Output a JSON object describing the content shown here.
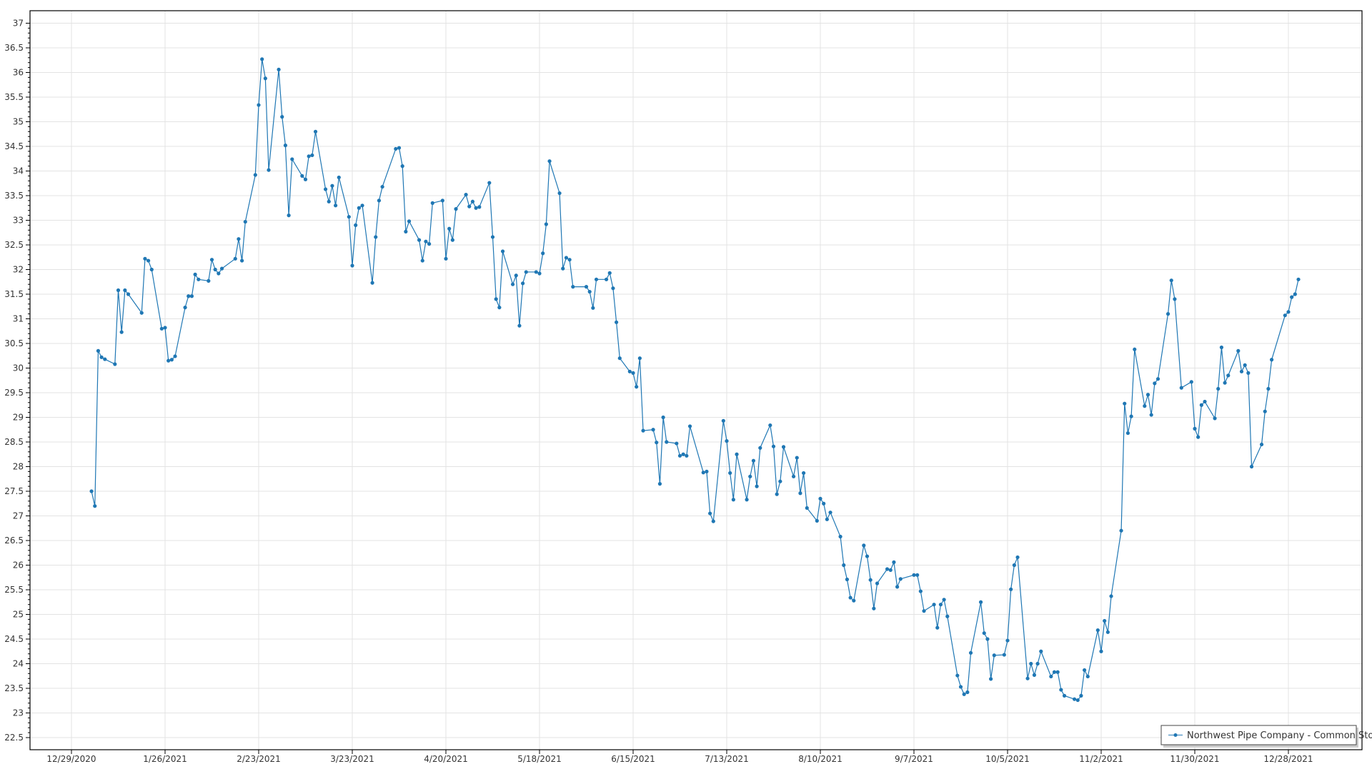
{
  "chart_data": {
    "type": "line",
    "title": "",
    "xlabel": "",
    "ylabel": "",
    "ylim": [
      22.5,
      37
    ],
    "y_ticks": [
      "22.5",
      "23",
      "23.5",
      "24",
      "24.5",
      "25",
      "25.5",
      "26",
      "26.5",
      "27",
      "27.5",
      "28",
      "28.5",
      "29",
      "29.5",
      "30",
      "30.5",
      "31",
      "31.5",
      "32",
      "32.5",
      "33",
      "33.5",
      "34",
      "34.5",
      "35",
      "35.5",
      "36",
      "36.5",
      "37"
    ],
    "x_ticks": [
      "12/29/2020",
      "1/26/2021",
      "2/23/2021",
      "3/23/2021",
      "4/20/2021",
      "5/18/2021",
      "6/15/2021",
      "7/13/2021",
      "8/10/2021",
      "9/7/2021",
      "10/5/2021",
      "11/2/2021",
      "11/30/2021",
      "12/28/2021"
    ],
    "xlim": [
      "2020-12-21",
      "2022-01-15"
    ],
    "grid": true,
    "legend_position": "bottom-right",
    "series_color": "#1f77b4",
    "series": [
      {
        "name": "Northwest Pipe Company - Common Stock",
        "dates": [
          "2021-01-04",
          "2021-01-05",
          "2021-01-06",
          "2021-01-07",
          "2021-01-08",
          "2021-01-11",
          "2021-01-12",
          "2021-01-13",
          "2021-01-14",
          "2021-01-15",
          "2021-01-19",
          "2021-01-20",
          "2021-01-21",
          "2021-01-22",
          "2021-01-25",
          "2021-01-26",
          "2021-01-27",
          "2021-01-28",
          "2021-01-29",
          "2021-02-01",
          "2021-02-02",
          "2021-02-03",
          "2021-02-04",
          "2021-02-05",
          "2021-02-08",
          "2021-02-09",
          "2021-02-10",
          "2021-02-11",
          "2021-02-12",
          "2021-02-16",
          "2021-02-17",
          "2021-02-18",
          "2021-02-19",
          "2021-02-22",
          "2021-02-23",
          "2021-02-24",
          "2021-02-25",
          "2021-02-26",
          "2021-03-01",
          "2021-03-02",
          "2021-03-03",
          "2021-03-04",
          "2021-03-05",
          "2021-03-08",
          "2021-03-09",
          "2021-03-10",
          "2021-03-11",
          "2021-03-12",
          "2021-03-15",
          "2021-03-16",
          "2021-03-17",
          "2021-03-18",
          "2021-03-19",
          "2021-03-22",
          "2021-03-23",
          "2021-03-24",
          "2021-03-25",
          "2021-03-26",
          "2021-03-29",
          "2021-03-30",
          "2021-03-31",
          "2021-04-01",
          "2021-04-05",
          "2021-04-06",
          "2021-04-07",
          "2021-04-08",
          "2021-04-09",
          "2021-04-12",
          "2021-04-13",
          "2021-04-14",
          "2021-04-15",
          "2021-04-16",
          "2021-04-19",
          "2021-04-20",
          "2021-04-21",
          "2021-04-22",
          "2021-04-23",
          "2021-04-26",
          "2021-04-27",
          "2021-04-28",
          "2021-04-29",
          "2021-04-30",
          "2021-05-03",
          "2021-05-04",
          "2021-05-05",
          "2021-05-06",
          "2021-05-07",
          "2021-05-10",
          "2021-05-11",
          "2021-05-12",
          "2021-05-13",
          "2021-05-14",
          "2021-05-17",
          "2021-05-18",
          "2021-05-19",
          "2021-05-20",
          "2021-05-21",
          "2021-05-24",
          "2021-05-25",
          "2021-05-26",
          "2021-05-27",
          "2021-05-28",
          "2021-06-01",
          "2021-06-02",
          "2021-06-03",
          "2021-06-04",
          "2021-06-07",
          "2021-06-08",
          "2021-06-09",
          "2021-06-10",
          "2021-06-11",
          "2021-06-14",
          "2021-06-15",
          "2021-06-16",
          "2021-06-17",
          "2021-06-18",
          "2021-06-21",
          "2021-06-22",
          "2021-06-23",
          "2021-06-24",
          "2021-06-25",
          "2021-06-28",
          "2021-06-29",
          "2021-06-30",
          "2021-07-01",
          "2021-07-02",
          "2021-07-06",
          "2021-07-07",
          "2021-07-08",
          "2021-07-09",
          "2021-07-12",
          "2021-07-13",
          "2021-07-14",
          "2021-07-15",
          "2021-07-16",
          "2021-07-19",
          "2021-07-20",
          "2021-07-21",
          "2021-07-22",
          "2021-07-23",
          "2021-07-26",
          "2021-07-27",
          "2021-07-28",
          "2021-07-29",
          "2021-07-30",
          "2021-08-02",
          "2021-08-03",
          "2021-08-04",
          "2021-08-05",
          "2021-08-06",
          "2021-08-09",
          "2021-08-10",
          "2021-08-11",
          "2021-08-12",
          "2021-08-13",
          "2021-08-16",
          "2021-08-17",
          "2021-08-18",
          "2021-08-19",
          "2021-08-20",
          "2021-08-23",
          "2021-08-24",
          "2021-08-25",
          "2021-08-26",
          "2021-08-27",
          "2021-08-30",
          "2021-08-31",
          "2021-09-01",
          "2021-09-02",
          "2021-09-03",
          "2021-09-07",
          "2021-09-08",
          "2021-09-09",
          "2021-09-10",
          "2021-09-13",
          "2021-09-14",
          "2021-09-15",
          "2021-09-16",
          "2021-09-17",
          "2021-09-20",
          "2021-09-21",
          "2021-09-22",
          "2021-09-23",
          "2021-09-24",
          "2021-09-27",
          "2021-09-28",
          "2021-09-29",
          "2021-09-30",
          "2021-10-01",
          "2021-10-04",
          "2021-10-05",
          "2021-10-06",
          "2021-10-07",
          "2021-10-08",
          "2021-10-11",
          "2021-10-12",
          "2021-10-13",
          "2021-10-14",
          "2021-10-15",
          "2021-10-18",
          "2021-10-19",
          "2021-10-20",
          "2021-10-21",
          "2021-10-22",
          "2021-10-25",
          "2021-10-26",
          "2021-10-27",
          "2021-10-28",
          "2021-10-29",
          "2021-11-01",
          "2021-11-02",
          "2021-11-03",
          "2021-11-04",
          "2021-11-05",
          "2021-11-08",
          "2021-11-09",
          "2021-11-10",
          "2021-11-11",
          "2021-11-12",
          "2021-11-15",
          "2021-11-16",
          "2021-11-17",
          "2021-11-18",
          "2021-11-19",
          "2021-11-22",
          "2021-11-23",
          "2021-11-24",
          "2021-11-26",
          "2021-11-29",
          "2021-11-30",
          "2021-12-01",
          "2021-12-02",
          "2021-12-03",
          "2021-12-06",
          "2021-12-07",
          "2021-12-08",
          "2021-12-09",
          "2021-12-10",
          "2021-12-13",
          "2021-12-14",
          "2021-12-15",
          "2021-12-16",
          "2021-12-17",
          "2021-12-20",
          "2021-12-21",
          "2021-12-22",
          "2021-12-23",
          "2021-12-27",
          "2021-12-28",
          "2021-12-29",
          "2021-12-30",
          "2021-12-31"
        ],
        "values": [
          27.5,
          27.2,
          30.35,
          30.22,
          30.18,
          30.08,
          31.58,
          30.73,
          31.58,
          31.5,
          31.12,
          32.22,
          32.18,
          32.0,
          30.8,
          30.82,
          30.15,
          30.17,
          30.24,
          31.23,
          31.46,
          31.46,
          31.9,
          31.8,
          31.77,
          32.2,
          32.0,
          31.92,
          32.02,
          32.22,
          32.62,
          32.18,
          32.97,
          33.92,
          35.34,
          36.27,
          35.88,
          34.02,
          36.06,
          35.1,
          34.52,
          33.1,
          34.24,
          33.9,
          33.83,
          34.3,
          34.32,
          34.8,
          33.63,
          33.38,
          33.7,
          33.3,
          33.87,
          33.07,
          32.08,
          32.9,
          33.25,
          33.3,
          31.73,
          32.66,
          33.4,
          33.68,
          34.45,
          34.47,
          34.1,
          32.77,
          32.98,
          32.6,
          32.18,
          32.57,
          32.52,
          33.35,
          33.4,
          32.22,
          32.83,
          32.6,
          33.23,
          33.52,
          33.28,
          33.38,
          33.25,
          33.27,
          33.76,
          32.66,
          31.4,
          31.23,
          32.37,
          31.7,
          31.88,
          30.86,
          31.72,
          31.95,
          31.95,
          31.92,
          32.33,
          32.92,
          34.2,
          33.55,
          32.02,
          32.24,
          32.2,
          31.65,
          31.65,
          31.55,
          31.22,
          31.8,
          31.8,
          31.93,
          31.62,
          30.93,
          30.2,
          29.93,
          29.9,
          29.62,
          30.2,
          28.73,
          28.75,
          28.49,
          27.65,
          29.0,
          28.5,
          28.47,
          28.22,
          28.25,
          28.22,
          28.82,
          27.88,
          27.9,
          27.05,
          26.89,
          28.93,
          28.52,
          27.87,
          27.33,
          28.25,
          27.33,
          27.8,
          28.12,
          27.6,
          28.38,
          28.84,
          28.41,
          27.44,
          27.7,
          28.4,
          27.8,
          28.18,
          27.46,
          27.87,
          27.16,
          26.9,
          27.35,
          27.25,
          26.93,
          27.07,
          26.58,
          26.0,
          25.71,
          25.34,
          25.28,
          26.4,
          26.18,
          25.7,
          25.12,
          25.63,
          25.92,
          25.9,
          26.06,
          25.56,
          25.72,
          25.8,
          25.8,
          25.47,
          25.07,
          25.2,
          24.73,
          25.2,
          25.3,
          24.96,
          23.76,
          23.53,
          23.38,
          23.42,
          24.22,
          25.25,
          24.62,
          24.5,
          23.69,
          24.17,
          24.18,
          24.47,
          25.51,
          26.0,
          26.16,
          23.7,
          24.0,
          23.77,
          24.0,
          24.25,
          23.74,
          23.83,
          23.83,
          23.47,
          23.35,
          23.28,
          23.26,
          23.35,
          23.87,
          23.74,
          24.68,
          24.25,
          24.87,
          24.64,
          25.37,
          26.7,
          29.28,
          28.68,
          29.02,
          30.38,
          29.23,
          29.46,
          29.05,
          29.69,
          29.78,
          31.1,
          31.78,
          31.4,
          29.6,
          29.72,
          28.77,
          28.6,
          29.25,
          29.32,
          28.98,
          29.58,
          30.42,
          29.7,
          29.85,
          30.35,
          29.93,
          30.06,
          29.9,
          28.0,
          28.45,
          29.12,
          29.58,
          30.17,
          31.07,
          31.14,
          31.44,
          31.5,
          31.8
        ]
      }
    ]
  }
}
